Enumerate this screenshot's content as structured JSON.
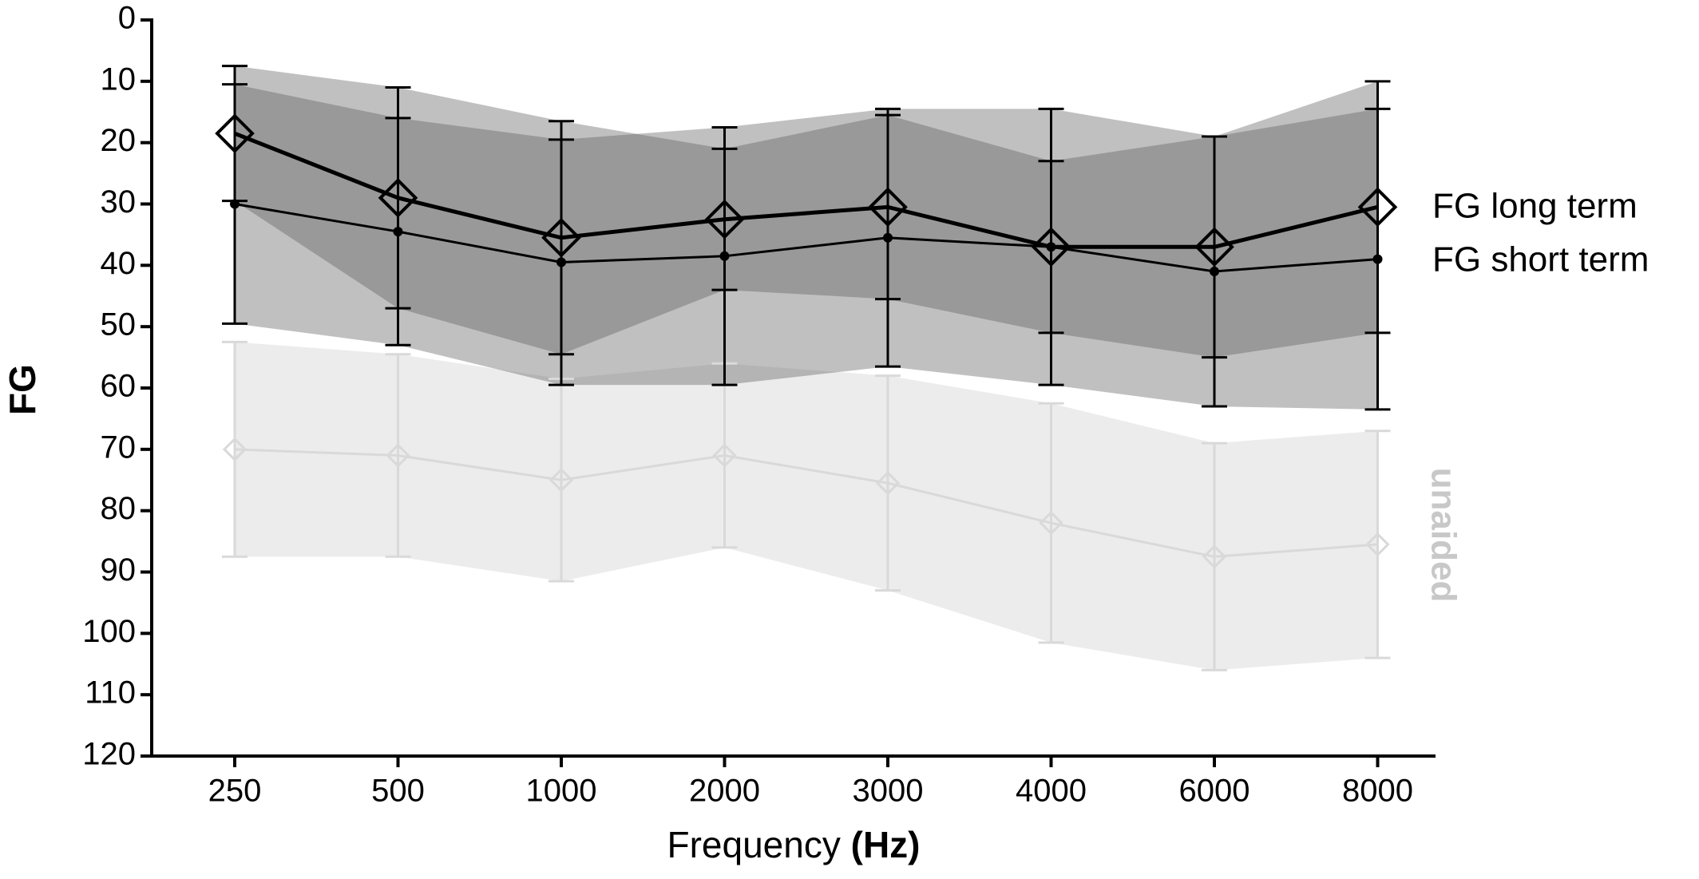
{
  "chart_data": {
    "type": "line",
    "ylabel": "FG",
    "xlabel": "Frequency",
    "xlabel_unit": "(Hz)",
    "categories": [
      "250",
      "500",
      "1000",
      "2000",
      "3000",
      "4000",
      "6000",
      "8000"
    ],
    "ylim": [
      120,
      0
    ],
    "yticks": [
      0,
      10,
      20,
      30,
      40,
      50,
      60,
      70,
      80,
      90,
      100,
      110,
      120
    ],
    "grid": false,
    "series": [
      {
        "name": "unaided",
        "color": "#d9d9d9",
        "band_color": "#ececec",
        "marker": "diamond",
        "values": [
          70,
          71,
          75,
          71,
          75.5,
          82,
          87.5,
          85.5
        ],
        "errors": [
          17.5,
          16.5,
          16.5,
          15,
          17.5,
          19.5,
          18.5,
          18.5
        ]
      },
      {
        "name": "FG long term",
        "color": "#000000",
        "band_color": "#5a5a5a",
        "marker": "diamond",
        "values": [
          18.5,
          29,
          35.5,
          32.5,
          30.5,
          37,
          37,
          30.5
        ],
        "errors": [
          11,
          18,
          19,
          11.5,
          15,
          14,
          18,
          20.5
        ]
      },
      {
        "name": "FG short term",
        "color": "#000000",
        "band_color": "#5a5a5a",
        "marker": "circle",
        "values": [
          30,
          34.5,
          39.5,
          38.5,
          35.5,
          37,
          41,
          39
        ],
        "errors": [
          19.5,
          18.5,
          20,
          21,
          21,
          22.5,
          22,
          24.5
        ]
      }
    ]
  }
}
